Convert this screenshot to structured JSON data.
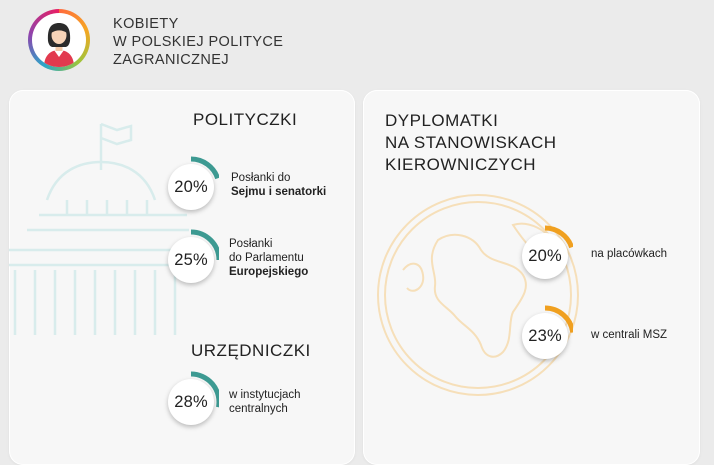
{
  "header": {
    "icon": "woman-avatar-icon",
    "title_lines": [
      "KOBIETY",
      "W POLSKIEJ POLITYCE",
      "ZAGRANICZNEJ"
    ]
  },
  "politicians": {
    "title": "POLITYCZKI",
    "stats": [
      {
        "value": "20%",
        "fraction": 0.2,
        "label_line1": "Posłanki do",
        "label_line2": "Sejmu i senatorki"
      },
      {
        "value": "25%",
        "fraction": 0.25,
        "label_line1": "Posłanki",
        "label_line2": "do Parlamentu",
        "label_line3": "Europejskiego"
      }
    ]
  },
  "officials": {
    "title": "URZĘDNICZKI",
    "stats": [
      {
        "value": "28%",
        "fraction": 0.28,
        "label_line1": "w instytucjach",
        "label_line2": "centralnych"
      }
    ]
  },
  "diplomats": {
    "title_lines": [
      "DYPLOMATKI",
      "NA STANOWISKACH",
      "KIEROWNICZYCH"
    ],
    "stats": [
      {
        "value": "20%",
        "fraction": 0.2,
        "label": "na placówkach"
      },
      {
        "value": "23%",
        "fraction": 0.23,
        "label": "w centrali MSZ"
      }
    ]
  },
  "colors": {
    "teal_accent": "#3d9a92",
    "orange_accent": "#f0a020",
    "parliament_line": "#d8ecec",
    "globe_line": "#f6dfb9",
    "avatar_red": "#e23a4e"
  }
}
